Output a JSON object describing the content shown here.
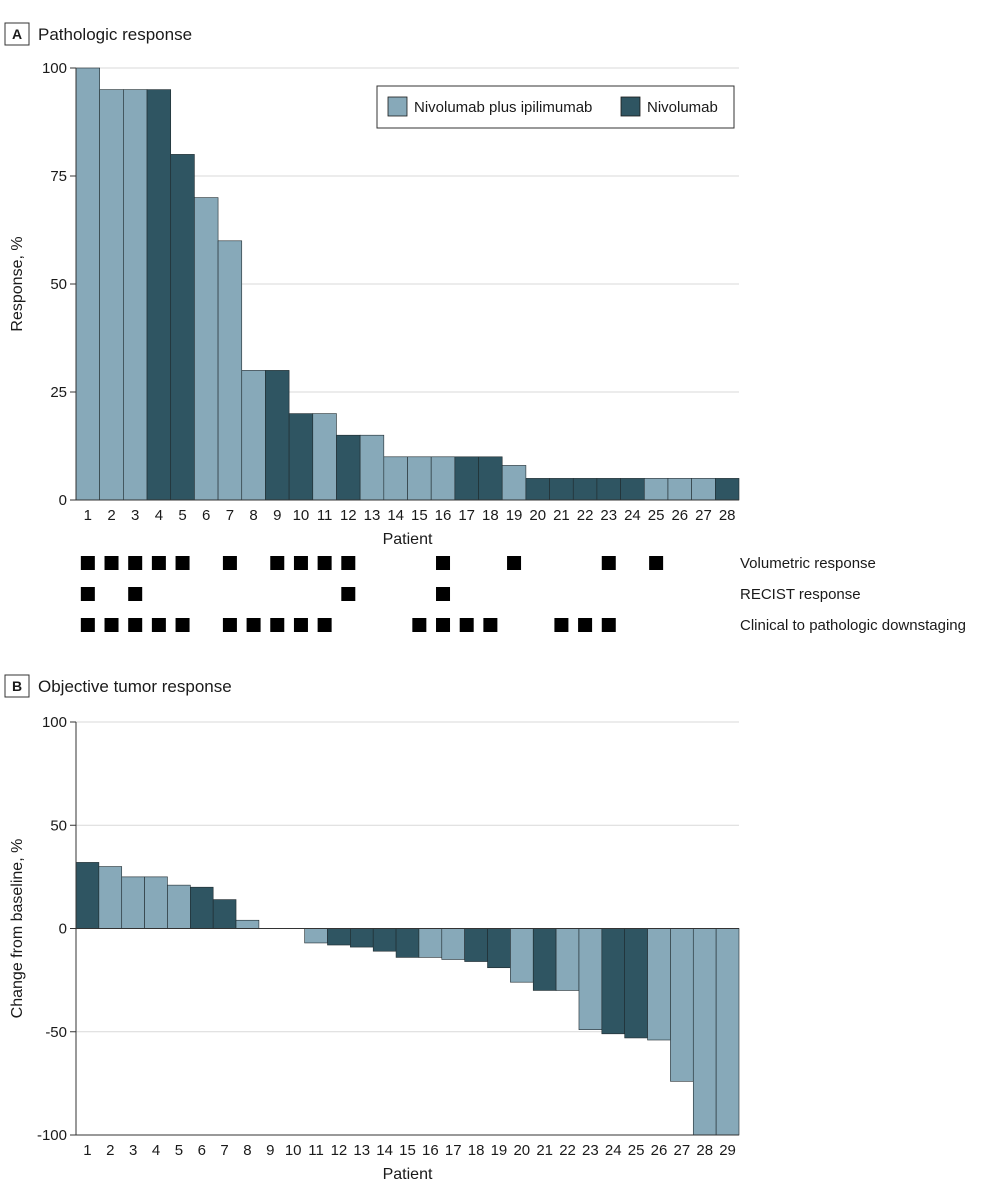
{
  "colors": {
    "combo": "#87a9b9",
    "nivo": "#2f5562",
    "grid": "#d9d9d9",
    "axis": "#333333",
    "marker": "#000000"
  },
  "chart_data": [
    {
      "type": "bar",
      "panel_letter": "A",
      "title": "Pathologic response",
      "xlabel": "Patient",
      "ylabel": "Response, %",
      "ylim": [
        0,
        100
      ],
      "yticks": [
        0,
        25,
        50,
        75,
        100
      ],
      "grid": true,
      "legend_position": "top-right",
      "legend": [
        {
          "key": "combo",
          "label": "Nivolumab plus ipilimumab"
        },
        {
          "key": "nivo",
          "label": "Nivolumab"
        }
      ],
      "categories": [
        "1",
        "2",
        "3",
        "4",
        "5",
        "6",
        "7",
        "8",
        "9",
        "10",
        "11",
        "12",
        "13",
        "14",
        "15",
        "16",
        "17",
        "18",
        "19",
        "20",
        "21",
        "22",
        "23",
        "24",
        "25",
        "26",
        "27",
        "28"
      ],
      "values": [
        100,
        95,
        95,
        95,
        80,
        70,
        60,
        30,
        30,
        20,
        20,
        15,
        15,
        10,
        10,
        10,
        10,
        10,
        8,
        5,
        5,
        5,
        5,
        5,
        5,
        5,
        5,
        5
      ],
      "groups": [
        "combo",
        "combo",
        "combo",
        "nivo",
        "nivo",
        "combo",
        "combo",
        "combo",
        "nivo",
        "nivo",
        "combo",
        "nivo",
        "combo",
        "combo",
        "combo",
        "combo",
        "nivo",
        "nivo",
        "combo",
        "nivo",
        "nivo",
        "nivo",
        "nivo",
        "nivo",
        "combo",
        "combo",
        "combo",
        "nivo"
      ],
      "markers": [
        {
          "label": "Volumetric response",
          "patients": [
            1,
            2,
            3,
            4,
            5,
            7,
            9,
            10,
            11,
            12,
            16,
            19,
            23,
            25
          ]
        },
        {
          "label": "RECIST response",
          "patients": [
            1,
            3,
            12,
            16
          ]
        },
        {
          "label": "Clinical to pathologic downstaging",
          "patients": [
            1,
            2,
            3,
            4,
            5,
            7,
            8,
            9,
            10,
            11,
            15,
            16,
            17,
            18,
            21,
            22,
            23
          ]
        }
      ]
    },
    {
      "type": "bar",
      "panel_letter": "B",
      "title": "Objective tumor response",
      "xlabel": "Patient",
      "ylabel": "Change from baseline, %",
      "ylim": [
        -100,
        100
      ],
      "yticks": [
        -100,
        -50,
        0,
        50,
        100
      ],
      "grid": true,
      "categories": [
        "1",
        "2",
        "3",
        "4",
        "5",
        "6",
        "7",
        "8",
        "9",
        "10",
        "11",
        "12",
        "13",
        "14",
        "15",
        "16",
        "17",
        "18",
        "19",
        "20",
        "21",
        "22",
        "23",
        "24",
        "25",
        "26",
        "27",
        "28",
        "29"
      ],
      "values": [
        32,
        30,
        25,
        25,
        21,
        20,
        14,
        4,
        0,
        0,
        -7,
        -8,
        -9,
        -11,
        -14,
        -14,
        -15,
        -16,
        -19,
        -26,
        -30,
        -30,
        -49,
        -51,
        -53,
        -54,
        -74,
        -100,
        -100
      ],
      "groups": [
        "nivo",
        "combo",
        "combo",
        "combo",
        "combo",
        "nivo",
        "nivo",
        "combo",
        null,
        null,
        "combo",
        "nivo",
        "nivo",
        "nivo",
        "nivo",
        "combo",
        "combo",
        "nivo",
        "nivo",
        "combo",
        "nivo",
        "combo",
        "combo",
        "nivo",
        "nivo",
        "combo",
        "combo",
        "combo",
        "combo"
      ]
    }
  ]
}
